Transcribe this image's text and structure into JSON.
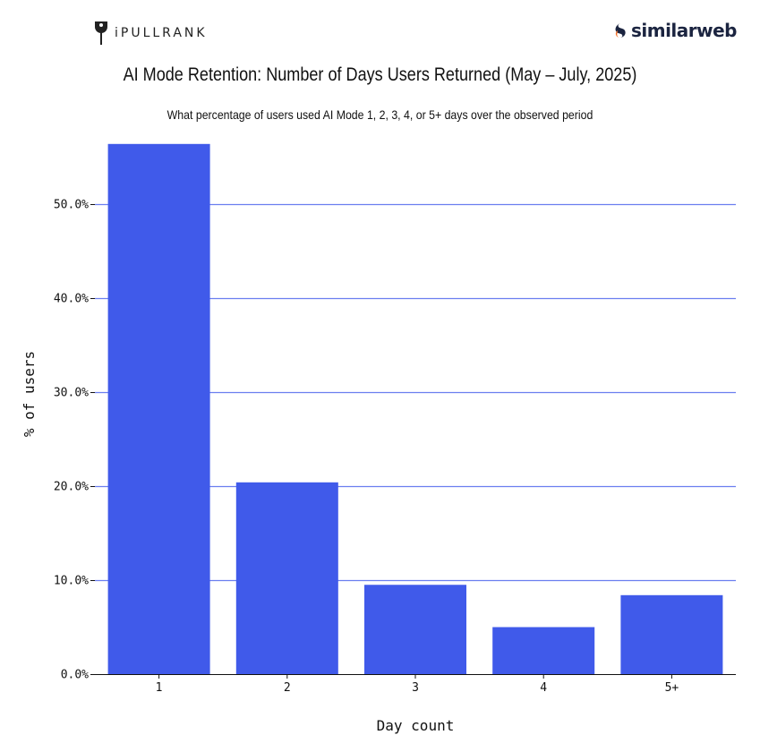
{
  "branding": {
    "left_logo": "iPULLRANK",
    "right_logo": "similarweb"
  },
  "colors": {
    "bar": "#405AEA",
    "grid": "#6A7EF0",
    "logo_accent": "#F26B21"
  },
  "chart_data": {
    "type": "bar",
    "title": "AI Mode Retention: Number of Days Users Returned (May – July, 2025)",
    "subtitle": "What percentage of users used AI Mode 1, 2, 3, 4, or 5+ days over the observed period",
    "xlabel": "Day count",
    "ylabel": "% of users",
    "categories": [
      "1",
      "2",
      "3",
      "4",
      "5+"
    ],
    "values": [
      56.4,
      20.4,
      9.5,
      5.0,
      8.4
    ],
    "ylim": [
      0,
      57
    ],
    "yticks": [
      0,
      10,
      20,
      30,
      40,
      50
    ],
    "ytick_labels": [
      "0.0%",
      "10.0%",
      "20.0%",
      "30.0%",
      "40.0%",
      "50.0%"
    ],
    "grid": "horizontal",
    "legend": "none"
  }
}
